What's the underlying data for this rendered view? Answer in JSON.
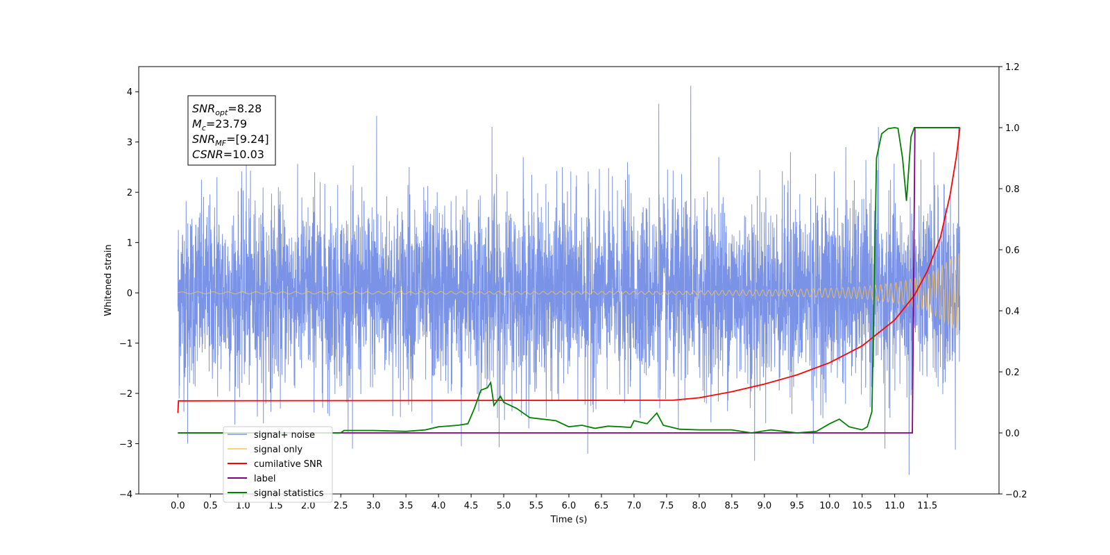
{
  "chart_data": {
    "type": "line",
    "xlabel": "Time (s)",
    "ylabel": "Whitened strain",
    "ylabel_right": "",
    "xlim": [
      -0.6,
      12.6
    ],
    "ylim": [
      -4,
      4.5
    ],
    "ylim_right": [
      -0.2,
      1.2
    ],
    "x_ticks": [
      "0.0",
      "0.5",
      "1.0",
      "1.5",
      "2.0",
      "2.5",
      "3.0",
      "3.5",
      "4.0",
      "4.5",
      "5.0",
      "5.5",
      "6.0",
      "6.5",
      "7.0",
      "7.5",
      "8.0",
      "8.5",
      "9.0",
      "9.5",
      "10.0",
      "10.5",
      "11.0",
      "11.5"
    ],
    "y_ticks_left": [
      "−4",
      "−3",
      "−2",
      "−1",
      "0",
      "1",
      "2",
      "3",
      "4"
    ],
    "y_ticks_right": [
      "−0.2",
      "0.0",
      "0.2",
      "0.4",
      "0.6",
      "0.8",
      "1.0",
      "1.2"
    ],
    "legend_position": "lower-left",
    "grid": false,
    "annotation": [
      {
        "var": "SNR",
        "sub": "opt",
        "value": "=8.28"
      },
      {
        "var": "M",
        "sub": "c",
        "value": "=23.79"
      },
      {
        "var": "SNR",
        "sub": "MF",
        "value": "=[9.24]"
      },
      {
        "var": "CSNR",
        "sub": "",
        "value": "=10.03"
      }
    ],
    "series": [
      {
        "name": "signal+ noise",
        "color": "#7b93e6",
        "axis": "left",
        "kind": "noise",
        "baseline_std": 0.9,
        "duration": 12.0,
        "spikes": [
          {
            "x": 0.02,
            "y": 2.52
          },
          {
            "x": 0.02,
            "y": -2.1
          },
          {
            "x": 0.15,
            "y": -3.0
          },
          {
            "x": 0.6,
            "y": 2.3
          },
          {
            "x": 1.05,
            "y": 2.6
          },
          {
            "x": 1.35,
            "y": -2.2
          },
          {
            "x": 2.1,
            "y": 2.4
          },
          {
            "x": 2.3,
            "y": -2.4
          },
          {
            "x": 2.68,
            "y": -3.1
          },
          {
            "x": 3.05,
            "y": 3.52
          },
          {
            "x": 3.55,
            "y": 2.5
          },
          {
            "x": 3.9,
            "y": -2.6
          },
          {
            "x": 4.35,
            "y": -3.05
          },
          {
            "x": 4.82,
            "y": 3.3
          },
          {
            "x": 4.93,
            "y": -3.07
          },
          {
            "x": 5.3,
            "y": 2.7
          },
          {
            "x": 5.9,
            "y": 2.5
          },
          {
            "x": 6.29,
            "y": -3.2
          },
          {
            "x": 6.9,
            "y": 2.6
          },
          {
            "x": 7.38,
            "y": 3.76
          },
          {
            "x": 7.68,
            "y": -2.7
          },
          {
            "x": 7.87,
            "y": 4.12
          },
          {
            "x": 8.3,
            "y": 2.7
          },
          {
            "x": 8.85,
            "y": -3.34
          },
          {
            "x": 9.4,
            "y": 2.8
          },
          {
            "x": 9.75,
            "y": -3.0
          },
          {
            "x": 10.25,
            "y": 2.9
          },
          {
            "x": 10.75,
            "y": 3.3
          },
          {
            "x": 10.85,
            "y": -3.1
          },
          {
            "x": 11.22,
            "y": -3.62
          },
          {
            "x": 11.6,
            "y": 2.8
          },
          {
            "x": 11.93,
            "y": -3.12
          },
          {
            "x": 11.98,
            "y": 3.3
          }
        ]
      },
      {
        "name": "signal only",
        "color": "#ffc44d",
        "axis": "left",
        "kind": "chirp",
        "amplitude_points": [
          [
            0,
            0.02
          ],
          [
            7.5,
            0.03
          ],
          [
            8.5,
            0.05
          ],
          [
            9.5,
            0.07
          ],
          [
            10.5,
            0.12
          ],
          [
            11.0,
            0.2
          ],
          [
            11.5,
            0.35
          ],
          [
            12.0,
            0.8
          ]
        ],
        "freq_points": [
          [
            0,
            4
          ],
          [
            8,
            9
          ],
          [
            10,
            11
          ],
          [
            11,
            13
          ],
          [
            12,
            16
          ]
        ]
      },
      {
        "name": "cumilative SNR",
        "color": "#ff0000",
        "axis": "right",
        "points": [
          [
            0,
            0.065
          ],
          [
            0.01,
            0.105
          ],
          [
            7.6,
            0.107
          ],
          [
            8.0,
            0.115
          ],
          [
            8.5,
            0.135
          ],
          [
            9.0,
            0.16
          ],
          [
            9.5,
            0.19
          ],
          [
            10.0,
            0.23
          ],
          [
            10.5,
            0.285
          ],
          [
            11.0,
            0.37
          ],
          [
            11.3,
            0.45
          ],
          [
            11.5,
            0.53
          ],
          [
            11.7,
            0.64
          ],
          [
            11.85,
            0.78
          ],
          [
            11.95,
            0.91
          ],
          [
            12.0,
            1.0
          ]
        ]
      },
      {
        "name": "label",
        "color": "#800080",
        "axis": "right",
        "points": [
          [
            0,
            0.0
          ],
          [
            11.27,
            0.0
          ],
          [
            11.29,
            0.5
          ],
          [
            11.31,
            1.0
          ],
          [
            12.0,
            1.0
          ]
        ]
      },
      {
        "name": "signal statistics",
        "color": "#008000",
        "axis": "right",
        "points": [
          [
            0,
            0.0
          ],
          [
            2.5,
            0.0
          ],
          [
            2.55,
            0.008
          ],
          [
            3.0,
            0.008
          ],
          [
            3.5,
            0.005
          ],
          [
            3.8,
            0.01
          ],
          [
            4.0,
            0.02
          ],
          [
            4.3,
            0.025
          ],
          [
            4.45,
            0.03
          ],
          [
            4.55,
            0.08
          ],
          [
            4.65,
            0.14
          ],
          [
            4.75,
            0.148
          ],
          [
            4.8,
            0.165
          ],
          [
            4.85,
            0.09
          ],
          [
            4.95,
            0.12
          ],
          [
            5.0,
            0.1
          ],
          [
            5.2,
            0.08
          ],
          [
            5.4,
            0.05
          ],
          [
            5.6,
            0.045
          ],
          [
            5.8,
            0.04
          ],
          [
            6.0,
            0.02
          ],
          [
            6.2,
            0.025
          ],
          [
            6.4,
            0.015
          ],
          [
            6.6,
            0.022
          ],
          [
            6.8,
            0.02
          ],
          [
            6.95,
            0.018
          ],
          [
            7.0,
            0.04
          ],
          [
            7.2,
            0.03
          ],
          [
            7.35,
            0.065
          ],
          [
            7.45,
            0.025
          ],
          [
            7.7,
            0.012
          ],
          [
            8.0,
            0.01
          ],
          [
            8.5,
            0.01
          ],
          [
            8.8,
            0.0
          ],
          [
            9.1,
            0.01
          ],
          [
            9.5,
            0.0
          ],
          [
            9.8,
            0.005
          ],
          [
            10.0,
            0.03
          ],
          [
            10.15,
            0.045
          ],
          [
            10.3,
            0.02
          ],
          [
            10.5,
            0.01
          ],
          [
            10.58,
            0.02
          ],
          [
            10.65,
            0.07
          ],
          [
            10.72,
            0.9
          ],
          [
            10.8,
            0.98
          ],
          [
            10.9,
            0.997
          ],
          [
            11.0,
            1.0
          ],
          [
            11.05,
            0.998
          ],
          [
            11.12,
            0.9
          ],
          [
            11.18,
            0.76
          ],
          [
            11.25,
            0.97
          ],
          [
            11.3,
            1.0
          ],
          [
            12.0,
            1.0
          ]
        ]
      }
    ]
  }
}
